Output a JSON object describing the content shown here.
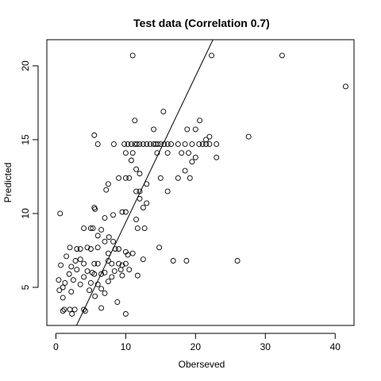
{
  "chart_data": {
    "type": "scatter",
    "title": "Test data (Correlation 0.7)",
    "x_label": "Oberseved",
    "y_label": "Predicted",
    "x": [
      11,
      22.3,
      32.4,
      41.5,
      27.6,
      26,
      18.7,
      16.8,
      14.8,
      8.3,
      9.8,
      10.3,
      10.8,
      11.3,
      11.6,
      12,
      12.5,
      13,
      13.5,
      14,
      14.3,
      14.6,
      15,
      15.5,
      16,
      16.5,
      17.5,
      18.5,
      19.5,
      20.5,
      21,
      21.5,
      22,
      23,
      5.5,
      6,
      15.4,
      11.3,
      14,
      18.8,
      20,
      20.6,
      22,
      21.5,
      10,
      11,
      14.5,
      16,
      18,
      19,
      19.5,
      20,
      23,
      10.8,
      11.5,
      12,
      17.5,
      18.5,
      19.2,
      15,
      13,
      9,
      10,
      10.5,
      7.5,
      7.2,
      11.5,
      12,
      16,
      12,
      13,
      12.5,
      9.5,
      10,
      5.5,
      5.6,
      0.6,
      8.2,
      7,
      11.5,
      11.7,
      12.7,
      4,
      5,
      5.3,
      6.5,
      6,
      7.6,
      7,
      8.2,
      2,
      3,
      3.5,
      4.5,
      5,
      6,
      7.5,
      8.5,
      9,
      10,
      10.3,
      11,
      12.5,
      1.5,
      2.8,
      3.5,
      4,
      5.5,
      6,
      7.5,
      8,
      9,
      9.5,
      10,
      0.7,
      2.2,
      3,
      4.5,
      5.2,
      7,
      8.4,
      9.3,
      10.5,
      1.9,
      4,
      5.5,
      6.5,
      8,
      9.5,
      11.7,
      0.4,
      1.3,
      2.5,
      3.5,
      5,
      6,
      7.5,
      1,
      0.5,
      2.2,
      4.8,
      6.5,
      1,
      5.6,
      7,
      8.8,
      1.2,
      2,
      2.7,
      4,
      1,
      2.3,
      4.2,
      6.5,
      10
    ],
    "values": [
      20.7,
      20.7,
      20.7,
      18.6,
      15.2,
      6.8,
      6.8,
      6.8,
      7.7,
      14.7,
      14.7,
      14.7,
      14.7,
      14.7,
      14.7,
      14.7,
      14.7,
      14.7,
      14.7,
      14.7,
      14.7,
      14.7,
      14.7,
      14.7,
      14.7,
      14.7,
      14.7,
      14.7,
      14.7,
      14.7,
      14.7,
      14.7,
      14.7,
      14.7,
      15.3,
      14.7,
      16.9,
      16.3,
      15.7,
      15.7,
      15.7,
      16.3,
      15.2,
      15,
      14.1,
      14.1,
      14.1,
      14.1,
      14.1,
      14.1,
      13.5,
      13.8,
      13.8,
      13.6,
      13,
      12.7,
      12.4,
      12.9,
      12.4,
      12.4,
      12,
      12.4,
      12.4,
      12.4,
      12,
      11.6,
      11.5,
      11.5,
      11.5,
      11,
      10.7,
      10.4,
      10.1,
      10.1,
      10.4,
      10.3,
      10,
      9.9,
      9.7,
      9.6,
      9,
      9,
      9,
      9,
      9,
      8.9,
      8.5,
      8.4,
      8.1,
      8.1,
      7.7,
      7.6,
      7.6,
      7.7,
      7.6,
      7.7,
      7.3,
      7.6,
      7.6,
      7.4,
      7.2,
      7.3,
      6.9,
      7.1,
      6.8,
      6.9,
      6.6,
      6.6,
      6.6,
      6.8,
      6.6,
      6.6,
      6.5,
      6.6,
      6.5,
      6.4,
      6.2,
      6.1,
      6,
      6,
      6.1,
      6.2,
      6.2,
      5.9,
      5.7,
      5.9,
      5.9,
      5.7,
      5.8,
      5.8,
      5.5,
      5.3,
      5.5,
      5.2,
      5.3,
      5.2,
      5.4,
      5,
      4.8,
      4.7,
      4.8,
      4.9,
      4.3,
      4.4,
      4.6,
      4,
      3.5,
      3.5,
      3.5,
      3.5,
      3.4,
      3.2,
      3.4,
      3.6,
      3.2
    ],
    "abline": {
      "intercept": -0.5,
      "slope": 0.99
    },
    "xlim": [
      -1.3,
      42.7
    ],
    "ylim": [
      2.42,
      21.77
    ],
    "xticks": [
      0,
      10,
      20,
      30,
      40
    ],
    "yticks": [
      5,
      10,
      15,
      20
    ]
  }
}
